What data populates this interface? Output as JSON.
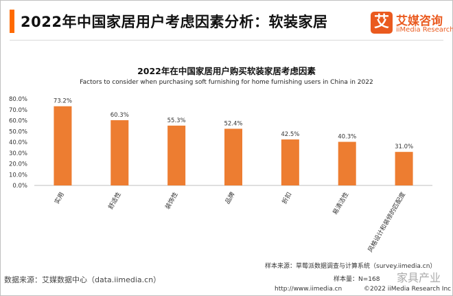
{
  "header": {
    "title": "2022年中国家居用户考虑因素分析：软装家居",
    "brand_mark": "艾",
    "brand_name": "艾媒咨询",
    "brand_sub": "iiMedia Research"
  },
  "colors": {
    "accent": "#ff6a00",
    "bar": "#ed7d31",
    "brand": "#ea5a1f"
  },
  "chart_data": {
    "type": "bar",
    "title": "2022年在中国家居用户购买软装家居考虑因素",
    "subtitle": "Factors to consider when purchasing soft furnishing for home furnishing users in China in 2022",
    "categories": [
      "实用",
      "舒适性",
      "装饰性",
      "品牌",
      "折扣",
      "易清洁性",
      "风格设计和装修的匹配度"
    ],
    "values": [
      73.2,
      60.3,
      55.3,
      52.4,
      42.5,
      40.3,
      31.0
    ],
    "data_labels": [
      "73.2%",
      "60.3%",
      "55.3%",
      "52.4%",
      "42.5%",
      "40.3%",
      "31.0%"
    ],
    "ylim": [
      0,
      80
    ],
    "yticks": [
      "0.0%",
      "10.0%",
      "20.0%",
      "30.0%",
      "40.0%",
      "50.0%",
      "60.0%",
      "70.0%",
      "80.0%"
    ],
    "xlabel": "",
    "ylabel": "",
    "grid": false,
    "legend": "none"
  },
  "footer": {
    "source_sample": "样本来源：草莓派数据调查与计算系统（survey.iimedia.cn）",
    "sample_size": "样本量：N=168",
    "data_source": "数据来源：艾媒数据中心（data.iimedia.cn）",
    "copyright_url": "http://www.iimedia.cn",
    "copyright": "©2022  iiMedia Research  Inc",
    "watermark": "家具产业"
  }
}
